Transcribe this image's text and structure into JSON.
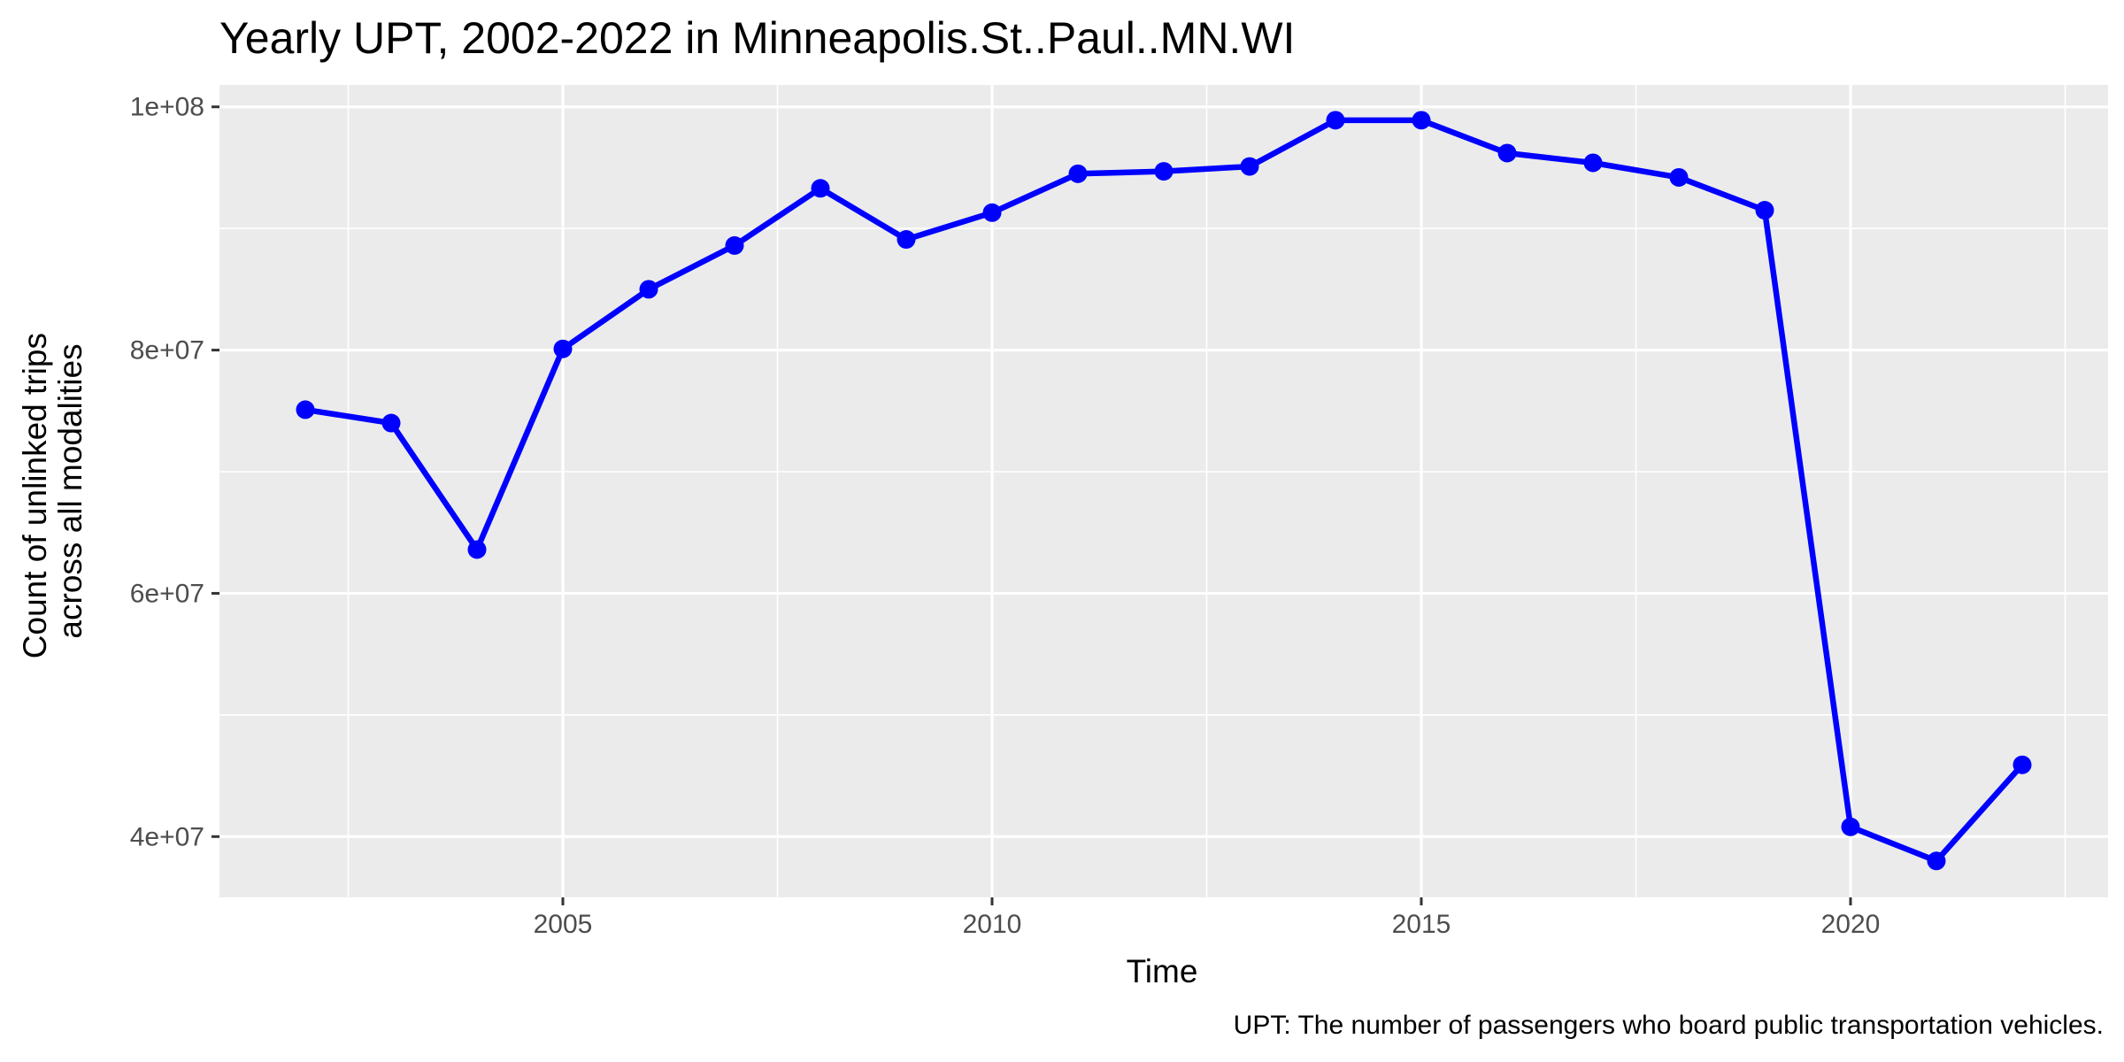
{
  "chart_data": {
    "type": "line",
    "title": "Yearly UPT, 2002-2022 in Minneapolis.St..Paul..MN.WI",
    "xlabel": "Time",
    "ylabel_lines": [
      "Count of unlinked trips",
      "across all modalities"
    ],
    "caption": "UPT: The number of passengers who board public transportation vehicles.",
    "x_ticks": [
      2005,
      2010,
      2015,
      2020
    ],
    "x_tick_labels": [
      "2005",
      "2010",
      "2015",
      "2020"
    ],
    "y_ticks": [
      40000000,
      60000000,
      80000000,
      100000000
    ],
    "y_tick_labels": [
      "4e+07",
      "6e+07",
      "8e+07",
      "1e+08"
    ],
    "xlim": [
      2001,
      2023
    ],
    "ylim": [
      35000000,
      101800000
    ],
    "grid": true,
    "colors": {
      "panel": "#ebebeb",
      "grid": "#ffffff",
      "series": "#0000ff"
    },
    "series": [
      {
        "x": [
          2002,
          2003,
          2004,
          2005,
          2006,
          2007,
          2008,
          2009,
          2010,
          2011,
          2012,
          2013,
          2014,
          2015,
          2016,
          2017,
          2018,
          2019,
          2020,
          2021,
          2022
        ],
        "values": [
          75100000,
          74000000,
          63600000,
          80100000,
          85000000,
          88600000,
          93300000,
          89100000,
          91300000,
          94500000,
          94700000,
          95100000,
          98900000,
          98900000,
          96200000,
          95400000,
          94200000,
          91500000,
          40800000,
          38000000,
          45900000
        ]
      }
    ]
  }
}
